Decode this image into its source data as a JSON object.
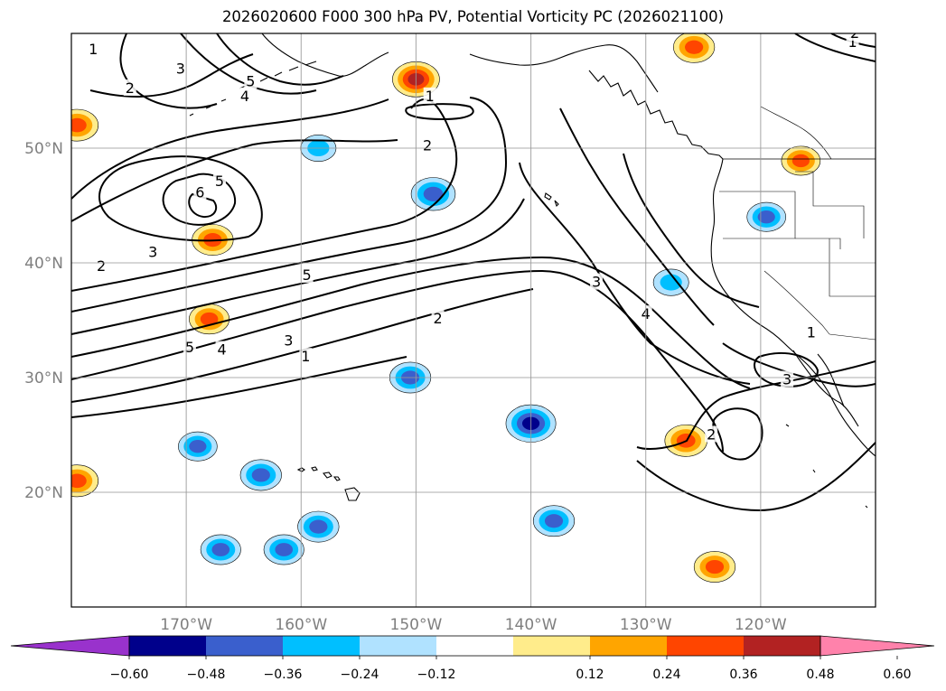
{
  "title": "2026020600 F000 300 hPa PV, Potential Vorticity PC (2026021100)",
  "map": {
    "region": "North Pacific / US West Coast",
    "projection": "equirectangular",
    "lon_range": [
      -180,
      -110
    ],
    "lat_range": [
      10,
      60
    ],
    "lat_gridlines": [
      {
        "lat": 50,
        "label": "50°N"
      },
      {
        "lat": 40,
        "label": "40°N"
      },
      {
        "lat": 30,
        "label": "30°N"
      },
      {
        "lat": 20,
        "label": "20°N"
      }
    ],
    "lon_gridlines": [
      {
        "lon": -170,
        "label": "170°W"
      },
      {
        "lon": -160,
        "label": "160°W"
      },
      {
        "lon": -150,
        "label": "150°W"
      },
      {
        "lon": -140,
        "label": "140°W"
      },
      {
        "lon": -130,
        "label": "130°W"
      },
      {
        "lon": -120,
        "label": "120°W"
      }
    ],
    "contour_labels": [
      {
        "text": "1",
        "lon": -178.1,
        "lat": 58.6
      },
      {
        "text": "2",
        "lon": -174.9,
        "lat": 55.2
      },
      {
        "text": "3",
        "lon": -170.5,
        "lat": 56.9
      },
      {
        "text": "5",
        "lon": -164.4,
        "lat": 55.8
      },
      {
        "text": "4",
        "lon": -164.9,
        "lat": 54.5
      },
      {
        "text": "1",
        "lon": -148.8,
        "lat": 54.5
      },
      {
        "text": "2",
        "lon": -149.0,
        "lat": 50.2
      },
      {
        "text": "6",
        "lon": -168.8,
        "lat": 46.1
      },
      {
        "text": "5",
        "lon": -167.1,
        "lat": 47.1
      },
      {
        "text": "3",
        "lon": -172.9,
        "lat": 40.9
      },
      {
        "text": "2",
        "lon": -177.4,
        "lat": 39.7
      },
      {
        "text": "5",
        "lon": -159.5,
        "lat": 38.9
      },
      {
        "text": "2",
        "lon": -148.1,
        "lat": 35.1
      },
      {
        "text": "3",
        "lon": -134.3,
        "lat": 38.3
      },
      {
        "text": "4",
        "lon": -130.0,
        "lat": 35.5
      },
      {
        "text": "5",
        "lon": -169.7,
        "lat": 32.6
      },
      {
        "text": "4",
        "lon": -166.9,
        "lat": 32.4
      },
      {
        "text": "3",
        "lon": -161.1,
        "lat": 33.2
      },
      {
        "text": "1",
        "lon": -159.6,
        "lat": 31.8
      },
      {
        "text": "1",
        "lon": -115.6,
        "lat": 33.9
      },
      {
        "text": "3",
        "lon": -117.7,
        "lat": 29.8
      },
      {
        "text": "2",
        "lon": -124.3,
        "lat": 25.0
      },
      {
        "text": "1",
        "lon": -112.0,
        "lat": 59.2
      },
      {
        "text": "2",
        "lon": -111.8,
        "lat": 60.0
      }
    ],
    "anomaly_blobs": [
      {
        "lon": -150.0,
        "lat": 56.0,
        "value": 0.5
      },
      {
        "lon": -148.5,
        "lat": 46.0,
        "value": -0.45
      },
      {
        "lon": -167.7,
        "lat": 42.0,
        "value": 0.4
      },
      {
        "lon": -140.0,
        "lat": 26.0,
        "value": -0.55
      },
      {
        "lon": -150.5,
        "lat": 30.0,
        "value": -0.4
      },
      {
        "lon": -126.5,
        "lat": 24.5,
        "value": 0.42
      },
      {
        "lon": -179.5,
        "lat": 52.0,
        "value": 0.42
      },
      {
        "lon": -179.5,
        "lat": 21.0,
        "value": 0.42
      },
      {
        "lon": -163.5,
        "lat": 21.5,
        "value": -0.4
      },
      {
        "lon": -138.0,
        "lat": 17.5,
        "value": -0.4
      },
      {
        "lon": -158.5,
        "lat": 17.0,
        "value": -0.4
      },
      {
        "lon": -167.0,
        "lat": 15.0,
        "value": -0.38
      },
      {
        "lon": -161.5,
        "lat": 15.0,
        "value": -0.38
      },
      {
        "lon": -168.0,
        "lat": 35.1,
        "value": 0.38
      },
      {
        "lon": -169.0,
        "lat": 24.0,
        "value": -0.36
      },
      {
        "lon": -124.0,
        "lat": 13.5,
        "value": 0.4
      },
      {
        "lon": -119.5,
        "lat": 44.0,
        "value": -0.36
      },
      {
        "lon": -116.5,
        "lat": 48.9,
        "value": 0.36
      },
      {
        "lon": -125.8,
        "lat": 58.8,
        "value": 0.4
      },
      {
        "lon": -158.5,
        "lat": 50.0,
        "value": -0.3
      },
      {
        "lon": -127.8,
        "lat": 38.3,
        "value": -0.3
      }
    ]
  },
  "colorbar": {
    "colors": [
      "#9932cc",
      "#00008b",
      "#3a5fcd",
      "#00bfff",
      "#b0e2ff",
      "#ffffff",
      "#ffec8b",
      "#ffa500",
      "#ff4500",
      "#b22222",
      "#ff82ab"
    ],
    "tick_labels": [
      "−0.60",
      "−0.48",
      "−0.36",
      "−0.24",
      "−0.12",
      "0.12",
      "0.24",
      "0.36",
      "0.48",
      "0.60"
    ]
  }
}
